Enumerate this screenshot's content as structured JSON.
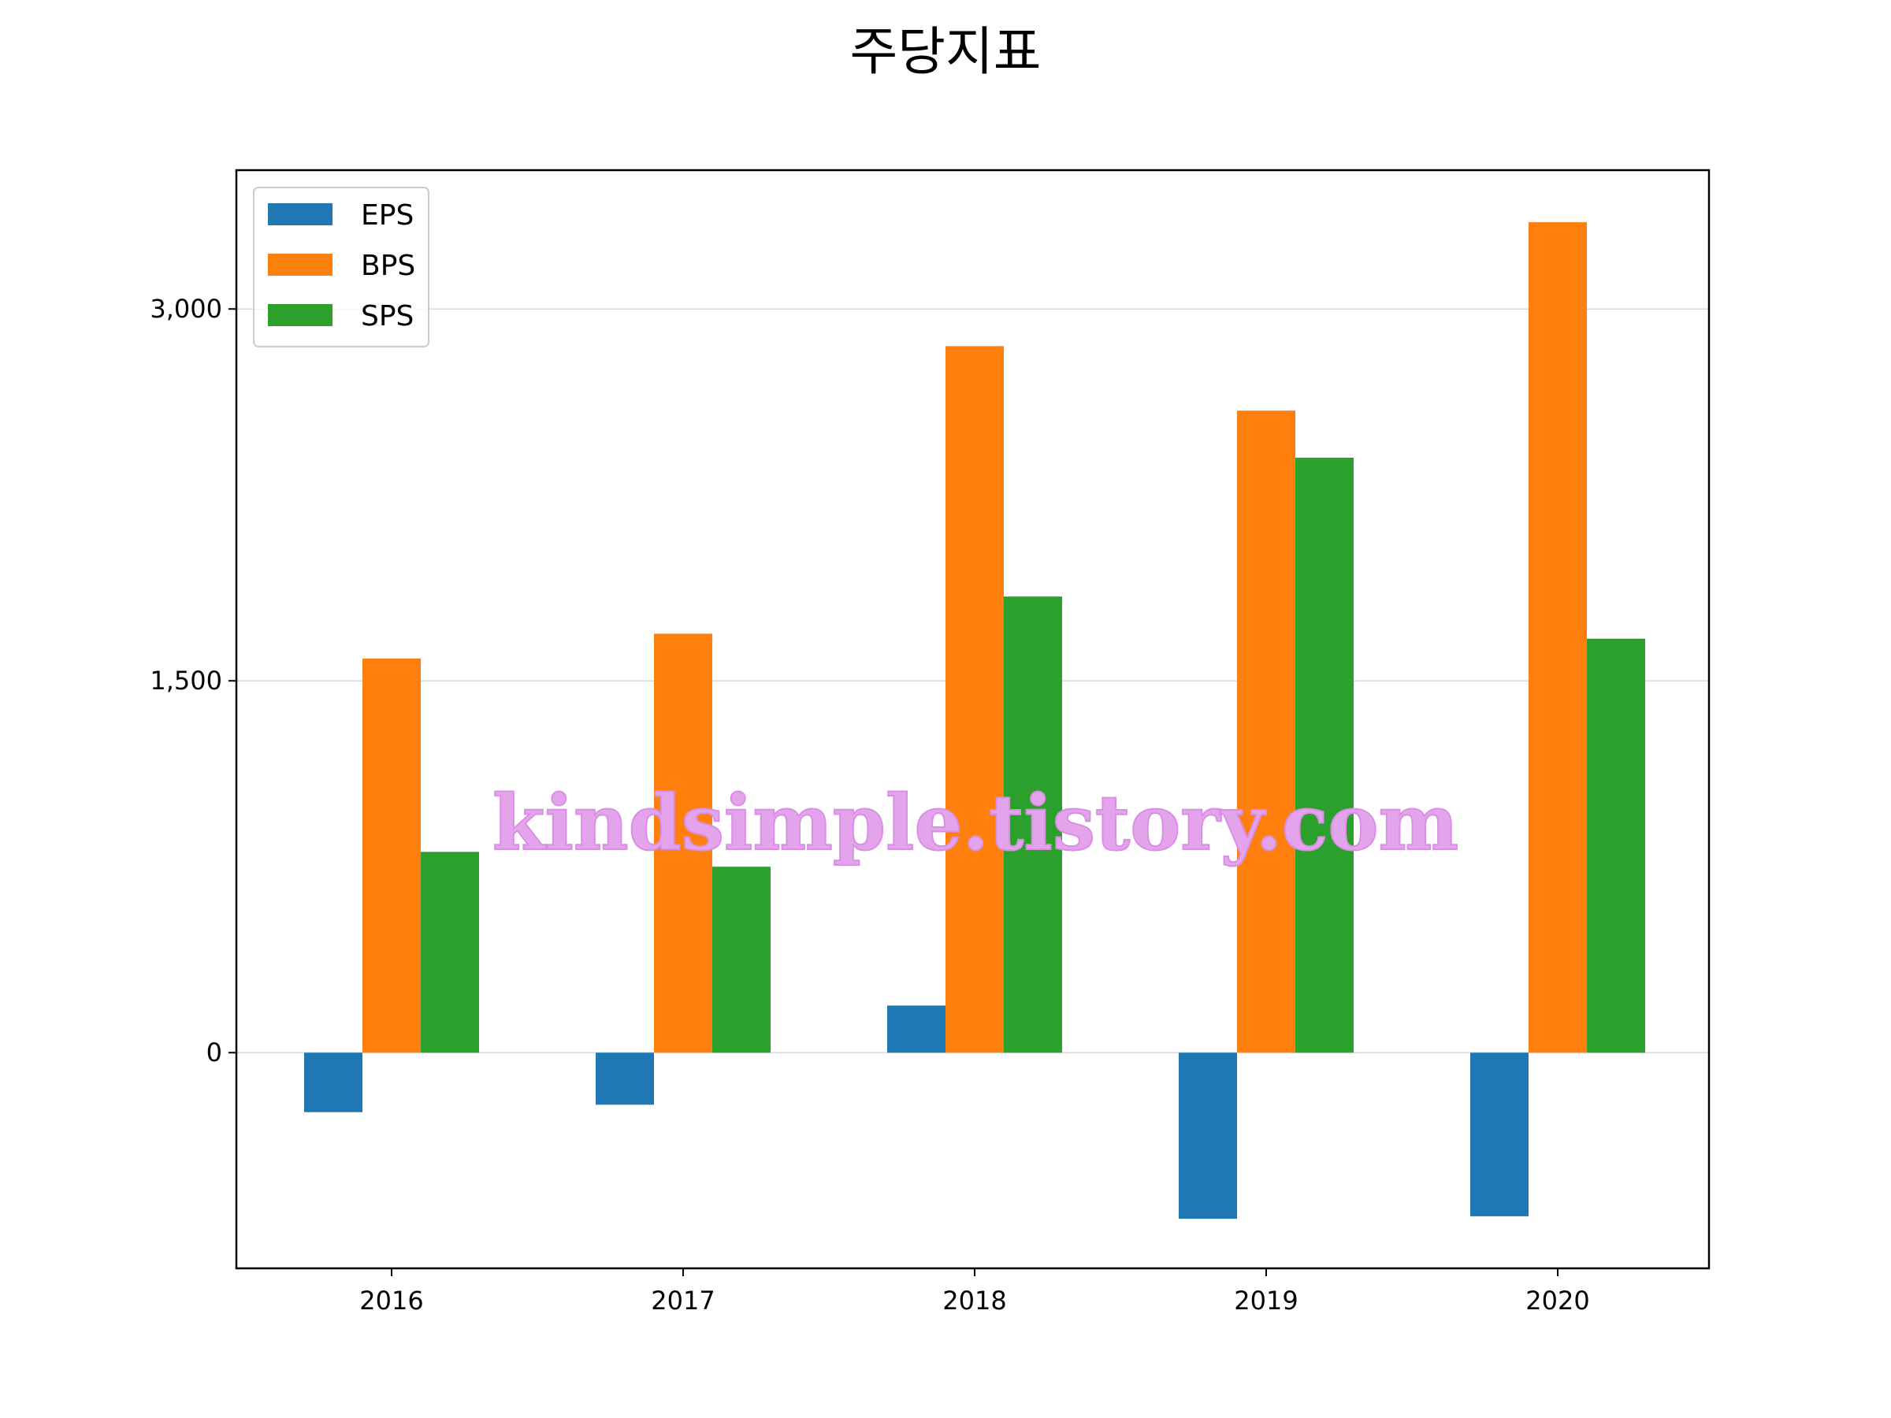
{
  "chart_data": {
    "type": "bar",
    "title": "주당지표",
    "categories": [
      "2016",
      "2017",
      "2018",
      "2019",
      "2020"
    ],
    "series": [
      {
        "name": "EPS",
        "color": "#1f77b4",
        "values": [
          -240,
          -210,
          190,
          -670,
          -660
        ]
      },
      {
        "name": "BPS",
        "color": "#ff7f0e",
        "values": [
          1590,
          1690,
          2850,
          2590,
          3350
        ]
      },
      {
        "name": "SPS",
        "color": "#2ca02c",
        "values": [
          810,
          750,
          1840,
          2400,
          1670
        ]
      }
    ],
    "yticks": [
      0,
      1500,
      3000
    ],
    "ytick_labels": [
      "0",
      "1,500",
      "3,000"
    ],
    "ylim": [
      -870,
      3560
    ],
    "grid": "y",
    "legend_position": "top-left"
  },
  "watermark": "kindsimple.tistory.com"
}
